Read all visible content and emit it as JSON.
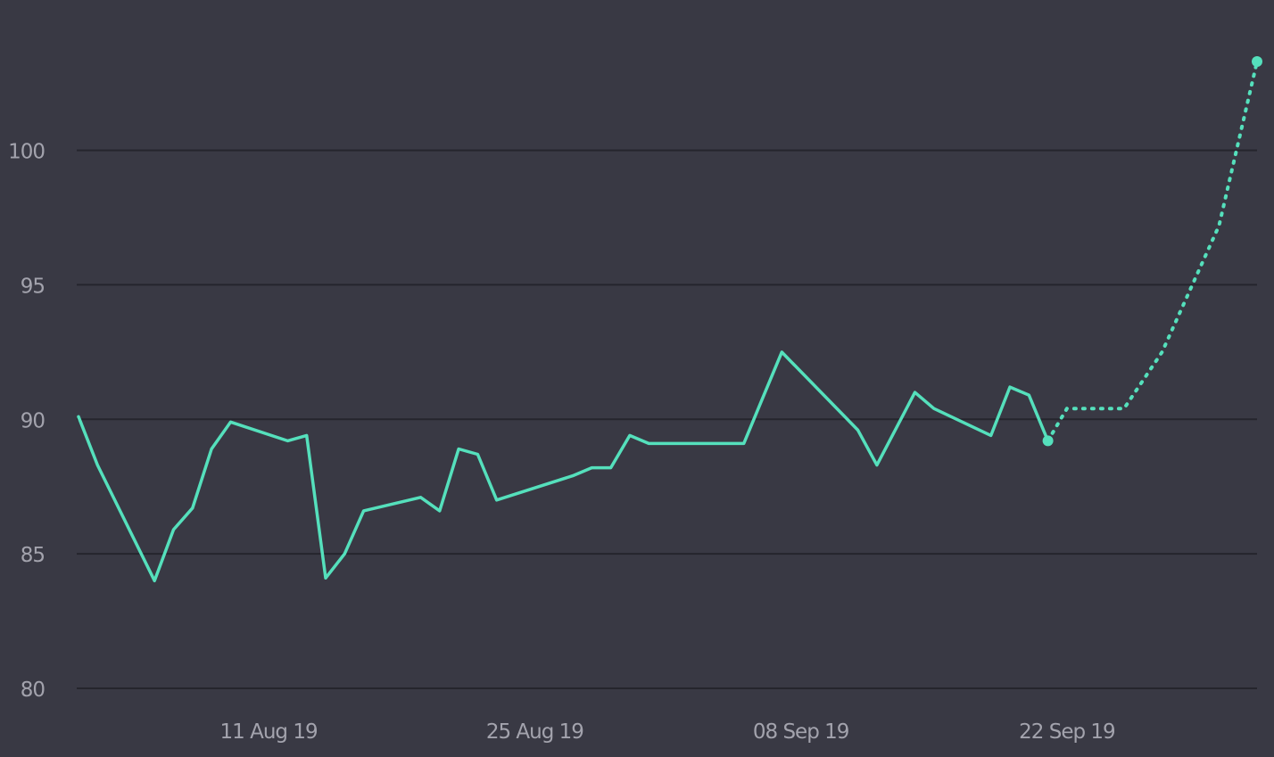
{
  "colors": {
    "background": "#393944",
    "grid": "#25252d",
    "tick_text": "#a3a3ad",
    "series": "#55e0bc"
  },
  "chart_data": {
    "type": "line",
    "title": "",
    "xlabel": "",
    "ylabel": "",
    "ylim": [
      80,
      103.3
    ],
    "yticks": [
      80,
      85,
      90,
      95,
      100
    ],
    "xlim": [
      "2019-08-01",
      "2019-10-02"
    ],
    "xticks": [
      {
        "date": "2019-08-11",
        "label": "11 Aug 19"
      },
      {
        "date": "2019-08-25",
        "label": "25 Aug 19"
      },
      {
        "date": "2019-09-08",
        "label": "08 Sep 19"
      },
      {
        "date": "2019-09-22",
        "label": "22 Sep 19"
      }
    ],
    "grid": true,
    "legend": "none",
    "series": [
      {
        "style": "solid",
        "end_marker": true,
        "points": [
          [
            "2019-08-01",
            90.1
          ],
          [
            "2019-08-02",
            88.3
          ],
          [
            "2019-08-05",
            84.0
          ],
          [
            "2019-08-06",
            85.9
          ],
          [
            "2019-08-07",
            86.7
          ],
          [
            "2019-08-08",
            88.9
          ],
          [
            "2019-08-09",
            89.9
          ],
          [
            "2019-08-12",
            89.2
          ],
          [
            "2019-08-13",
            89.4
          ],
          [
            "2019-08-14",
            84.1
          ],
          [
            "2019-08-15",
            85.0
          ],
          [
            "2019-08-16",
            86.6
          ],
          [
            "2019-08-19",
            87.1
          ],
          [
            "2019-08-20",
            86.6
          ],
          [
            "2019-08-21",
            88.9
          ],
          [
            "2019-08-22",
            88.7
          ],
          [
            "2019-08-23",
            87.0
          ],
          [
            "2019-08-27",
            87.9
          ],
          [
            "2019-08-28",
            88.2
          ],
          [
            "2019-08-29",
            88.2
          ],
          [
            "2019-08-30",
            89.4
          ],
          [
            "2019-08-31",
            89.1
          ],
          [
            "2019-09-05",
            89.1
          ],
          [
            "2019-09-06",
            90.8
          ],
          [
            "2019-09-07",
            92.5
          ],
          [
            "2019-09-11",
            89.6
          ],
          [
            "2019-09-12",
            88.3
          ],
          [
            "2019-09-14",
            91.0
          ],
          [
            "2019-09-15",
            90.4
          ],
          [
            "2019-09-18",
            89.4
          ],
          [
            "2019-09-19",
            91.2
          ],
          [
            "2019-09-20",
            90.9
          ],
          [
            "2019-09-21",
            89.2
          ]
        ]
      },
      {
        "style": "dotted",
        "end_marker": true,
        "points": [
          [
            "2019-09-21",
            89.2
          ],
          [
            "2019-09-22",
            90.4
          ],
          [
            "2019-09-25",
            90.4
          ],
          [
            "2019-09-27",
            92.5
          ],
          [
            "2019-09-30",
            97.2
          ],
          [
            "2019-10-02",
            103.3
          ]
        ]
      }
    ]
  }
}
